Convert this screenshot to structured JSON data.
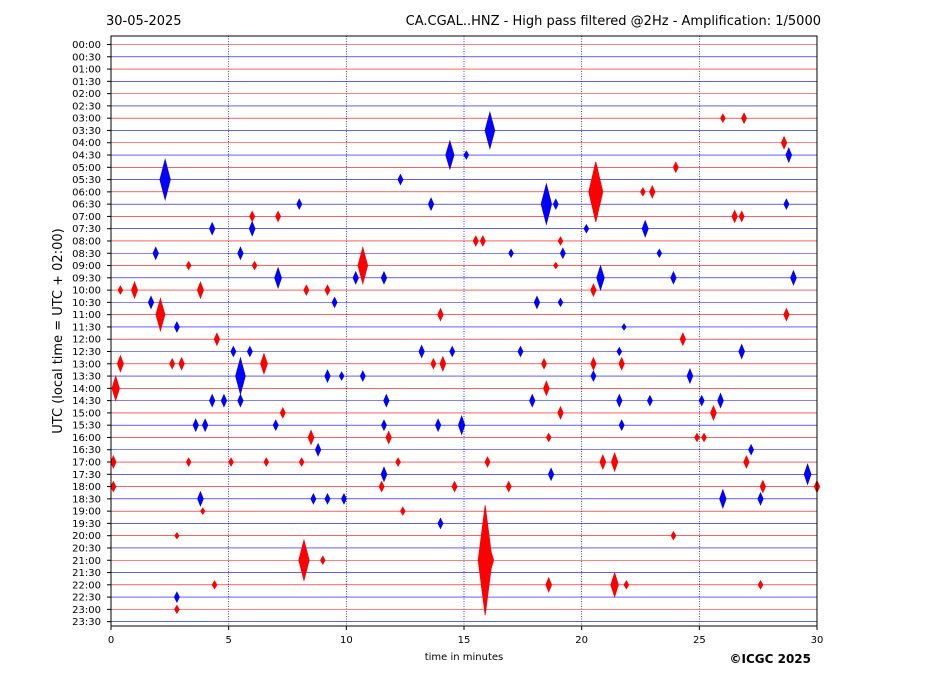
{
  "header": {
    "date": "30-05-2025",
    "title": "CA.CGAL..HNZ - High pass filtered @2Hz - Amplification: 1/5000"
  },
  "footer": {
    "copyright": "©ICGC 2025"
  },
  "chart_data": {
    "type": "line",
    "xlabel": "time in minutes",
    "ylabel": "UTC (local time = UTC + 02:00)",
    "xlim": [
      0,
      30
    ],
    "x_ticks": [
      0,
      5,
      10,
      15,
      20,
      25,
      30
    ],
    "x_tick_labels": [
      "0",
      "5",
      "10",
      "15",
      "20",
      "25",
      "30"
    ],
    "rows": [
      "00:00",
      "00:30",
      "01:00",
      "01:30",
      "02:00",
      "02:30",
      "03:00",
      "03:30",
      "04:00",
      "04:30",
      "05:00",
      "05:30",
      "06:00",
      "06:30",
      "07:00",
      "07:30",
      "08:00",
      "08:30",
      "09:00",
      "09:30",
      "10:00",
      "10:30",
      "11:00",
      "11:30",
      "12:00",
      "12:30",
      "13:00",
      "13:30",
      "14:00",
      "14:30",
      "15:00",
      "15:30",
      "16:00",
      "16:30",
      "17:00",
      "17:30",
      "18:00",
      "18:30",
      "19:00",
      "19:30",
      "20:00",
      "20:30",
      "21:00",
      "21:30",
      "22:00",
      "22:30",
      "23:00",
      "23:30"
    ],
    "trace_colors": [
      "#ff0000",
      "#0000ff"
    ],
    "grid": {
      "vertical_dotted": [
        5,
        10,
        15,
        20,
        25
      ]
    },
    "events": [
      {
        "row": "03:00",
        "t": 26.0,
        "amp": 4
      },
      {
        "row": "03:00",
        "t": 26.9,
        "amp": 5
      },
      {
        "row": "03:30",
        "t": 16.1,
        "amp": 18
      },
      {
        "row": "04:00",
        "t": 28.6,
        "amp": 6
      },
      {
        "row": "04:30",
        "t": 14.4,
        "amp": 14
      },
      {
        "row": "04:30",
        "t": 15.1,
        "amp": 4
      },
      {
        "row": "04:30",
        "t": 28.8,
        "amp": 7
      },
      {
        "row": "05:00",
        "t": 24.0,
        "amp": 5
      },
      {
        "row": "05:30",
        "t": 2.3,
        "amp": 20
      },
      {
        "row": "05:30",
        "t": 12.3,
        "amp": 5
      },
      {
        "row": "06:00",
        "t": 20.6,
        "amp": 30
      },
      {
        "row": "06:00",
        "t": 22.6,
        "amp": 4
      },
      {
        "row": "06:00",
        "t": 23.0,
        "amp": 6
      },
      {
        "row": "06:30",
        "t": 8.0,
        "amp": 5
      },
      {
        "row": "06:30",
        "t": 13.6,
        "amp": 6
      },
      {
        "row": "06:30",
        "t": 18.5,
        "amp": 20
      },
      {
        "row": "06:30",
        "t": 18.9,
        "amp": 5
      },
      {
        "row": "06:30",
        "t": 28.7,
        "amp": 5
      },
      {
        "row": "07:00",
        "t": 6.0,
        "amp": 5
      },
      {
        "row": "07:00",
        "t": 7.1,
        "amp": 5
      },
      {
        "row": "07:00",
        "t": 26.5,
        "amp": 6
      },
      {
        "row": "07:00",
        "t": 26.8,
        "amp": 5
      },
      {
        "row": "07:30",
        "t": 4.3,
        "amp": 6
      },
      {
        "row": "07:30",
        "t": 6.0,
        "amp": 7
      },
      {
        "row": "07:30",
        "t": 20.2,
        "amp": 4
      },
      {
        "row": "07:30",
        "t": 22.7,
        "amp": 8
      },
      {
        "row": "08:00",
        "t": 15.5,
        "amp": 5
      },
      {
        "row": "08:00",
        "t": 15.8,
        "amp": 5
      },
      {
        "row": "08:00",
        "t": 19.1,
        "amp": 4
      },
      {
        "row": "08:30",
        "t": 1.9,
        "amp": 6
      },
      {
        "row": "08:30",
        "t": 5.5,
        "amp": 6
      },
      {
        "row": "08:30",
        "t": 17.0,
        "amp": 4
      },
      {
        "row": "08:30",
        "t": 19.2,
        "amp": 5
      },
      {
        "row": "08:30",
        "t": 23.3,
        "amp": 4
      },
      {
        "row": "09:00",
        "t": 3.3,
        "amp": 4
      },
      {
        "row": "09:00",
        "t": 6.1,
        "amp": 4
      },
      {
        "row": "09:00",
        "t": 10.7,
        "amp": 18
      },
      {
        "row": "09:00",
        "t": 18.9,
        "amp": 3
      },
      {
        "row": "09:30",
        "t": 7.1,
        "amp": 10
      },
      {
        "row": "09:30",
        "t": 10.4,
        "amp": 6
      },
      {
        "row": "09:30",
        "t": 11.6,
        "amp": 6
      },
      {
        "row": "09:30",
        "t": 20.8,
        "amp": 12
      },
      {
        "row": "09:30",
        "t": 23.9,
        "amp": 6
      },
      {
        "row": "09:30",
        "t": 29.0,
        "amp": 7
      },
      {
        "row": "10:00",
        "t": 0.4,
        "amp": 4
      },
      {
        "row": "10:00",
        "t": 1.0,
        "amp": 8
      },
      {
        "row": "10:00",
        "t": 3.8,
        "amp": 8
      },
      {
        "row": "10:00",
        "t": 8.3,
        "amp": 5
      },
      {
        "row": "10:00",
        "t": 9.2,
        "amp": 5
      },
      {
        "row": "10:00",
        "t": 20.5,
        "amp": 6
      },
      {
        "row": "10:30",
        "t": 1.7,
        "amp": 6
      },
      {
        "row": "10:30",
        "t": 9.5,
        "amp": 5
      },
      {
        "row": "10:30",
        "t": 18.1,
        "amp": 6
      },
      {
        "row": "10:30",
        "t": 19.1,
        "amp": 4
      },
      {
        "row": "11:00",
        "t": 2.1,
        "amp": 16
      },
      {
        "row": "11:00",
        "t": 14.0,
        "amp": 6
      },
      {
        "row": "11:00",
        "t": 28.7,
        "amp": 6
      },
      {
        "row": "11:30",
        "t": 2.8,
        "amp": 5
      },
      {
        "row": "11:30",
        "t": 21.8,
        "amp": 3
      },
      {
        "row": "12:00",
        "t": 4.5,
        "amp": 6
      },
      {
        "row": "12:00",
        "t": 24.3,
        "amp": 6
      },
      {
        "row": "12:30",
        "t": 5.2,
        "amp": 5
      },
      {
        "row": "12:30",
        "t": 5.9,
        "amp": 5
      },
      {
        "row": "12:30",
        "t": 13.2,
        "amp": 6
      },
      {
        "row": "12:30",
        "t": 14.5,
        "amp": 5
      },
      {
        "row": "12:30",
        "t": 17.4,
        "amp": 5
      },
      {
        "row": "12:30",
        "t": 21.6,
        "amp": 4
      },
      {
        "row": "12:30",
        "t": 26.8,
        "amp": 7
      },
      {
        "row": "13:00",
        "t": 0.4,
        "amp": 8
      },
      {
        "row": "13:00",
        "t": 2.6,
        "amp": 5
      },
      {
        "row": "13:00",
        "t": 3.0,
        "amp": 6
      },
      {
        "row": "13:00",
        "t": 6.5,
        "amp": 10
      },
      {
        "row": "13:00",
        "t": 13.7,
        "amp": 5
      },
      {
        "row": "13:00",
        "t": 14.1,
        "amp": 7
      },
      {
        "row": "13:00",
        "t": 18.4,
        "amp": 5
      },
      {
        "row": "13:00",
        "t": 20.5,
        "amp": 6
      },
      {
        "row": "13:00",
        "t": 21.7,
        "amp": 6
      },
      {
        "row": "13:30",
        "t": 5.5,
        "amp": 18
      },
      {
        "row": "13:30",
        "t": 9.2,
        "amp": 6
      },
      {
        "row": "13:30",
        "t": 9.8,
        "amp": 4
      },
      {
        "row": "13:30",
        "t": 10.7,
        "amp": 5
      },
      {
        "row": "13:30",
        "t": 20.5,
        "amp": 5
      },
      {
        "row": "13:30",
        "t": 24.6,
        "amp": 7
      },
      {
        "row": "14:00",
        "t": 0.2,
        "amp": 12
      },
      {
        "row": "14:00",
        "t": 18.5,
        "amp": 7
      },
      {
        "row": "14:30",
        "t": 4.3,
        "amp": 6
      },
      {
        "row": "14:30",
        "t": 4.8,
        "amp": 6
      },
      {
        "row": "14:30",
        "t": 5.5,
        "amp": 6
      },
      {
        "row": "14:30",
        "t": 11.7,
        "amp": 6
      },
      {
        "row": "14:30",
        "t": 17.9,
        "amp": 6
      },
      {
        "row": "14:30",
        "t": 21.6,
        "amp": 6
      },
      {
        "row": "14:30",
        "t": 22.9,
        "amp": 5
      },
      {
        "row": "14:30",
        "t": 25.1,
        "amp": 5
      },
      {
        "row": "14:30",
        "t": 25.9,
        "amp": 7
      },
      {
        "row": "15:00",
        "t": 7.3,
        "amp": 5
      },
      {
        "row": "15:00",
        "t": 19.1,
        "amp": 6
      },
      {
        "row": "15:00",
        "t": 25.6,
        "amp": 7
      },
      {
        "row": "15:30",
        "t": 3.6,
        "amp": 6
      },
      {
        "row": "15:30",
        "t": 4.0,
        "amp": 6
      },
      {
        "row": "15:30",
        "t": 7.0,
        "amp": 5
      },
      {
        "row": "15:30",
        "t": 11.6,
        "amp": 5
      },
      {
        "row": "15:30",
        "t": 13.9,
        "amp": 6
      },
      {
        "row": "15:30",
        "t": 14.9,
        "amp": 9
      },
      {
        "row": "15:30",
        "t": 21.7,
        "amp": 5
      },
      {
        "row": "16:00",
        "t": 8.5,
        "amp": 7
      },
      {
        "row": "16:00",
        "t": 11.8,
        "amp": 6
      },
      {
        "row": "16:00",
        "t": 18.6,
        "amp": 4
      },
      {
        "row": "16:00",
        "t": 24.9,
        "amp": 4
      },
      {
        "row": "16:00",
        "t": 25.2,
        "amp": 4
      },
      {
        "row": "16:30",
        "t": 8.8,
        "amp": 6
      },
      {
        "row": "16:30",
        "t": 27.2,
        "amp": 5
      },
      {
        "row": "17:00",
        "t": 0.1,
        "amp": 6
      },
      {
        "row": "17:00",
        "t": 3.3,
        "amp": 4
      },
      {
        "row": "17:00",
        "t": 5.1,
        "amp": 4
      },
      {
        "row": "17:00",
        "t": 6.6,
        "amp": 4
      },
      {
        "row": "17:00",
        "t": 8.1,
        "amp": 4
      },
      {
        "row": "17:00",
        "t": 12.2,
        "amp": 4
      },
      {
        "row": "17:00",
        "t": 16.0,
        "amp": 5
      },
      {
        "row": "17:00",
        "t": 20.9,
        "amp": 7
      },
      {
        "row": "17:00",
        "t": 21.4,
        "amp": 9
      },
      {
        "row": "17:00",
        "t": 27.0,
        "amp": 6
      },
      {
        "row": "17:30",
        "t": 11.6,
        "amp": 7
      },
      {
        "row": "17:30",
        "t": 18.7,
        "amp": 6
      },
      {
        "row": "17:30",
        "t": 29.6,
        "amp": 10
      },
      {
        "row": "18:00",
        "t": 0.1,
        "amp": 5
      },
      {
        "row": "18:00",
        "t": 11.5,
        "amp": 5
      },
      {
        "row": "18:00",
        "t": 14.6,
        "amp": 5
      },
      {
        "row": "18:00",
        "t": 16.9,
        "amp": 5
      },
      {
        "row": "18:00",
        "t": 27.7,
        "amp": 6
      },
      {
        "row": "18:00",
        "t": 30.0,
        "amp": 6
      },
      {
        "row": "18:30",
        "t": 3.8,
        "amp": 7
      },
      {
        "row": "18:30",
        "t": 8.6,
        "amp": 5
      },
      {
        "row": "18:30",
        "t": 9.2,
        "amp": 5
      },
      {
        "row": "18:30",
        "t": 9.9,
        "amp": 5
      },
      {
        "row": "18:30",
        "t": 26.0,
        "amp": 9
      },
      {
        "row": "18:30",
        "t": 27.6,
        "amp": 6
      },
      {
        "row": "19:00",
        "t": 3.9,
        "amp": 3
      },
      {
        "row": "19:00",
        "t": 12.4,
        "amp": 4
      },
      {
        "row": "19:30",
        "t": 14.0,
        "amp": 5
      },
      {
        "row": "20:00",
        "t": 2.8,
        "amp": 3
      },
      {
        "row": "20:00",
        "t": 23.9,
        "amp": 4
      },
      {
        "row": "21:00",
        "t": 8.2,
        "amp": 20
      },
      {
        "row": "21:00",
        "t": 9.0,
        "amp": 4
      },
      {
        "row": "21:00",
        "t": 15.9,
        "amp": 55
      },
      {
        "row": "21:00",
        "t": 16.1,
        "amp": 12
      },
      {
        "row": "22:00",
        "t": 4.4,
        "amp": 4
      },
      {
        "row": "22:00",
        "t": 18.6,
        "amp": 7
      },
      {
        "row": "22:00",
        "t": 21.4,
        "amp": 12
      },
      {
        "row": "22:00",
        "t": 21.9,
        "amp": 4
      },
      {
        "row": "22:00",
        "t": 27.6,
        "amp": 4
      },
      {
        "row": "22:30",
        "t": 2.8,
        "amp": 5
      },
      {
        "row": "23:00",
        "t": 2.8,
        "amp": 4
      }
    ]
  }
}
